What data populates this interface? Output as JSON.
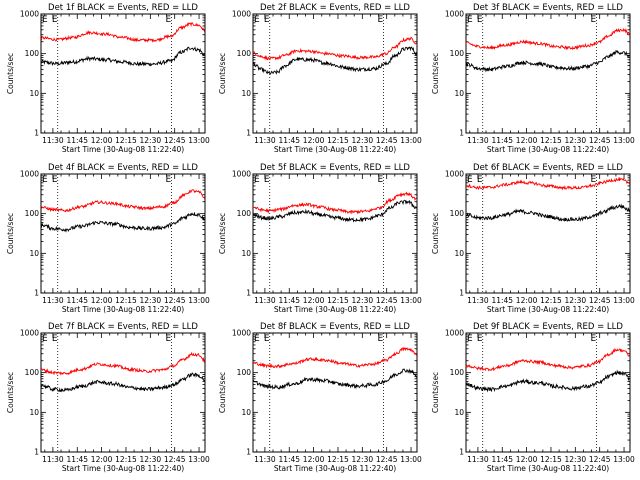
{
  "figure": {
    "xlabel": "Start Time (30-Aug-08 11:22:40)",
    "ylabel": "Counts/sec",
    "x_tick_labels": [
      "11:30",
      "11:45",
      "12:00",
      "12:15",
      "12:30",
      "12:45",
      "13:00"
    ],
    "y_tick_labels": [
      "1",
      "10",
      "100",
      "1000"
    ],
    "marker_label": "E",
    "colors": {
      "events": "#000000",
      "lld": "#ff0000",
      "frame": "#000000"
    }
  },
  "chart_data": [
    {
      "type": "line",
      "title": "Det 1f BLACK = Events, RED = LLD",
      "xlabel": "Start Time (30-Aug-08 11:22:40)",
      "ylabel": "Counts/sec",
      "x_unit": "minutes after 11:22:40",
      "xlim": [
        0,
        101
      ],
      "ylim": [
        1,
        1000
      ],
      "yscale": "log",
      "marker_lines_min": [
        10.3,
        80.3
      ],
      "series": [
        {
          "name": "Events",
          "color": "black",
          "x": [
            0,
            10,
            20,
            30,
            40,
            50,
            60,
            70,
            80,
            87,
            92,
            97,
            101
          ],
          "y": [
            62,
            56,
            62,
            75,
            70,
            62,
            55,
            55,
            65,
            110,
            140,
            125,
            90
          ]
        },
        {
          "name": "LLD",
          "color": "red",
          "x": [
            0,
            10,
            20,
            30,
            40,
            50,
            60,
            70,
            80,
            87,
            92,
            97,
            101
          ],
          "y": [
            250,
            225,
            255,
            340,
            310,
            255,
            220,
            220,
            275,
            460,
            560,
            520,
            380
          ]
        }
      ]
    },
    {
      "type": "line",
      "title": "Det 2f BLACK = Events, RED = LLD",
      "xlabel": "Start Time (30-Aug-08 11:22:40)",
      "ylabel": "Counts/sec",
      "x_unit": "minutes after 11:22:40",
      "xlim": [
        0,
        101
      ],
      "ylim": [
        1,
        1000
      ],
      "yscale": "log",
      "marker_lines_min": [
        10.3,
        80.3
      ],
      "series": [
        {
          "name": "Events",
          "color": "black",
          "x": [
            0,
            5,
            10,
            15,
            20,
            27,
            35,
            45,
            55,
            65,
            75,
            82,
            88,
            93,
            97,
            101
          ],
          "y": [
            55,
            40,
            32,
            34,
            50,
            72,
            70,
            58,
            46,
            40,
            42,
            55,
            90,
            130,
            140,
            100
          ]
        },
        {
          "name": "LLD",
          "color": "red",
          "x": [
            0,
            5,
            10,
            15,
            20,
            27,
            35,
            45,
            55,
            65,
            75,
            82,
            88,
            93,
            97,
            101
          ],
          "y": [
            105,
            85,
            75,
            78,
            92,
            118,
            115,
            100,
            88,
            80,
            82,
            100,
            150,
            220,
            240,
            180
          ]
        }
      ]
    },
    {
      "type": "line",
      "title": "Det 3f BLACK = Events, RED = LLD",
      "xlabel": "Start Time (30-Aug-08 11:22:40)",
      "ylabel": "Counts/sec",
      "x_unit": "minutes after 11:22:40",
      "xlim": [
        0,
        101
      ],
      "ylim": [
        1,
        1000
      ],
      "yscale": "log",
      "marker_lines_min": [
        10.3,
        80.3
      ],
      "series": [
        {
          "name": "Events",
          "color": "black",
          "x": [
            0,
            8,
            15,
            25,
            35,
            45,
            55,
            65,
            75,
            82,
            88,
            93,
            97,
            101
          ],
          "y": [
            55,
            42,
            40,
            48,
            60,
            55,
            45,
            42,
            48,
            60,
            85,
            110,
            105,
            85
          ]
        },
        {
          "name": "LLD",
          "color": "red",
          "x": [
            0,
            8,
            15,
            25,
            35,
            45,
            55,
            65,
            75,
            82,
            88,
            93,
            97,
            101
          ],
          "y": [
            185,
            150,
            140,
            165,
            200,
            180,
            150,
            140,
            160,
            195,
            280,
            380,
            400,
            310
          ]
        }
      ]
    },
    {
      "type": "line",
      "title": "Det 4f BLACK = Events, RED = LLD",
      "xlabel": "Start Time (30-Aug-08 11:22:40)",
      "ylabel": "Counts/sec",
      "x_unit": "minutes after 11:22:40",
      "xlim": [
        0,
        101
      ],
      "ylim": [
        1,
        1000
      ],
      "yscale": "log",
      "marker_lines_min": [
        10.3,
        80.3
      ],
      "series": [
        {
          "name": "Events",
          "color": "black",
          "x": [
            0,
            8,
            15,
            25,
            35,
            45,
            55,
            65,
            75,
            82,
            88,
            93,
            97,
            101
          ],
          "y": [
            52,
            42,
            40,
            48,
            60,
            55,
            45,
            42,
            45,
            55,
            80,
            100,
            95,
            70
          ]
        },
        {
          "name": "LLD",
          "color": "red",
          "x": [
            0,
            8,
            15,
            25,
            35,
            45,
            55,
            65,
            75,
            82,
            88,
            93,
            97,
            101
          ],
          "y": [
            145,
            125,
            120,
            150,
            195,
            180,
            150,
            135,
            150,
            190,
            290,
            380,
            350,
            250
          ]
        }
      ]
    },
    {
      "type": "line",
      "title": "Det 5f BLACK = Events, RED = LLD",
      "xlabel": "Start Time (30-Aug-08 11:22:40)",
      "ylabel": "Counts/sec",
      "x_unit": "minutes after 11:22:40",
      "xlim": [
        0,
        101
      ],
      "ylim": [
        1,
        1000
      ],
      "yscale": "log",
      "marker_lines_min": [
        10.3,
        80.3
      ],
      "series": [
        {
          "name": "Events",
          "color": "black",
          "x": [
            0,
            5,
            10,
            18,
            25,
            33,
            40,
            50,
            60,
            70,
            78,
            85,
            90,
            95,
            101
          ],
          "y": [
            95,
            80,
            75,
            85,
            105,
            110,
            95,
            80,
            70,
            72,
            90,
            140,
            190,
            200,
            140
          ]
        },
        {
          "name": "LLD",
          "color": "red",
          "x": [
            0,
            5,
            10,
            18,
            25,
            33,
            40,
            50,
            60,
            70,
            78,
            85,
            90,
            95,
            101
          ],
          "y": [
            145,
            125,
            118,
            130,
            160,
            170,
            150,
            125,
            110,
            115,
            140,
            220,
            300,
            320,
            230
          ]
        }
      ]
    },
    {
      "type": "line",
      "title": "Det 6f BLACK = Events, RED = LLD",
      "xlabel": "Start Time (30-Aug-08 11:22:40)",
      "ylabel": "Counts/sec",
      "x_unit": "minutes after 11:22:40",
      "xlim": [
        0,
        101
      ],
      "ylim": [
        1,
        1000
      ],
      "yscale": "log",
      "marker_lines_min": [
        10.3,
        80.3
      ],
      "series": [
        {
          "name": "Events",
          "color": "black",
          "x": [
            0,
            8,
            15,
            25,
            33,
            40,
            50,
            60,
            70,
            78,
            85,
            90,
            95,
            101
          ],
          "y": [
            90,
            78,
            78,
            95,
            115,
            105,
            85,
            72,
            72,
            85,
            110,
            140,
            155,
            120
          ]
        },
        {
          "name": "LLD",
          "color": "red",
          "x": [
            0,
            8,
            15,
            25,
            33,
            40,
            50,
            60,
            70,
            78,
            85,
            90,
            95,
            101
          ],
          "y": [
            510,
            450,
            460,
            540,
            620,
            590,
            500,
            450,
            450,
            510,
            620,
            700,
            720,
            600
          ]
        }
      ]
    },
    {
      "type": "line",
      "title": "Det 7f BLACK = Events, RED = LLD",
      "xlabel": "Start Time (30-Aug-08 11:22:40)",
      "ylabel": "Counts/sec",
      "x_unit": "minutes after 11:22:40",
      "xlim": [
        0,
        101
      ],
      "ylim": [
        1,
        1000
      ],
      "yscale": "log",
      "marker_lines_min": [
        10.3,
        80.3
      ],
      "series": [
        {
          "name": "Events",
          "color": "black",
          "x": [
            0,
            8,
            15,
            25,
            35,
            45,
            55,
            65,
            75,
            82,
            88,
            93,
            97,
            101
          ],
          "y": [
            48,
            38,
            36,
            45,
            58,
            52,
            42,
            38,
            42,
            50,
            70,
            90,
            85,
            65
          ]
        },
        {
          "name": "LLD",
          "color": "red",
          "x": [
            0,
            8,
            15,
            25,
            35,
            45,
            55,
            65,
            75,
            82,
            88,
            93,
            97,
            101
          ],
          "y": [
            118,
            100,
            96,
            122,
            165,
            150,
            120,
            108,
            118,
            150,
            220,
            290,
            280,
            200
          ]
        }
      ]
    },
    {
      "type": "line",
      "title": "Det 8f BLACK = Events, RED = LLD",
      "xlabel": "Start Time (30-Aug-08 11:22:40)",
      "ylabel": "Counts/sec",
      "x_unit": "minutes after 11:22:40",
      "xlim": [
        0,
        101
      ],
      "ylim": [
        1,
        1000
      ],
      "yscale": "log",
      "marker_lines_min": [
        10.3,
        80.3
      ],
      "series": [
        {
          "name": "Events",
          "color": "black",
          "x": [
            0,
            8,
            15,
            25,
            35,
            45,
            55,
            65,
            75,
            82,
            88,
            93,
            97,
            101
          ],
          "y": [
            58,
            45,
            43,
            52,
            68,
            62,
            50,
            46,
            50,
            62,
            90,
            115,
            110,
            80
          ]
        },
        {
          "name": "LLD",
          "color": "red",
          "x": [
            0,
            8,
            15,
            25,
            35,
            45,
            55,
            65,
            75,
            82,
            88,
            93,
            97,
            101
          ],
          "y": [
            175,
            150,
            145,
            170,
            220,
            205,
            170,
            150,
            165,
            205,
            300,
            400,
            380,
            270
          ]
        }
      ]
    },
    {
      "type": "line",
      "title": "Det 9f BLACK = Events, RED = LLD",
      "xlabel": "Start Time (30-Aug-08 11:22:40)",
      "ylabel": "Counts/sec",
      "x_unit": "minutes after 11:22:40",
      "xlim": [
        0,
        101
      ],
      "ylim": [
        1,
        1000
      ],
      "yscale": "log",
      "marker_lines_min": [
        10.3,
        80.3
      ],
      "series": [
        {
          "name": "Events",
          "color": "black",
          "x": [
            0,
            8,
            15,
            25,
            35,
            45,
            55,
            65,
            75,
            82,
            88,
            93,
            97,
            101
          ],
          "y": [
            52,
            40,
            38,
            46,
            60,
            55,
            45,
            40,
            45,
            55,
            80,
            100,
            95,
            70
          ]
        },
        {
          "name": "LLD",
          "color": "red",
          "x": [
            0,
            8,
            15,
            25,
            35,
            45,
            55,
            65,
            75,
            82,
            88,
            93,
            97,
            101
          ],
          "y": [
            150,
            128,
            122,
            150,
            200,
            185,
            150,
            135,
            150,
            190,
            290,
            380,
            360,
            260
          ]
        }
      ]
    }
  ]
}
